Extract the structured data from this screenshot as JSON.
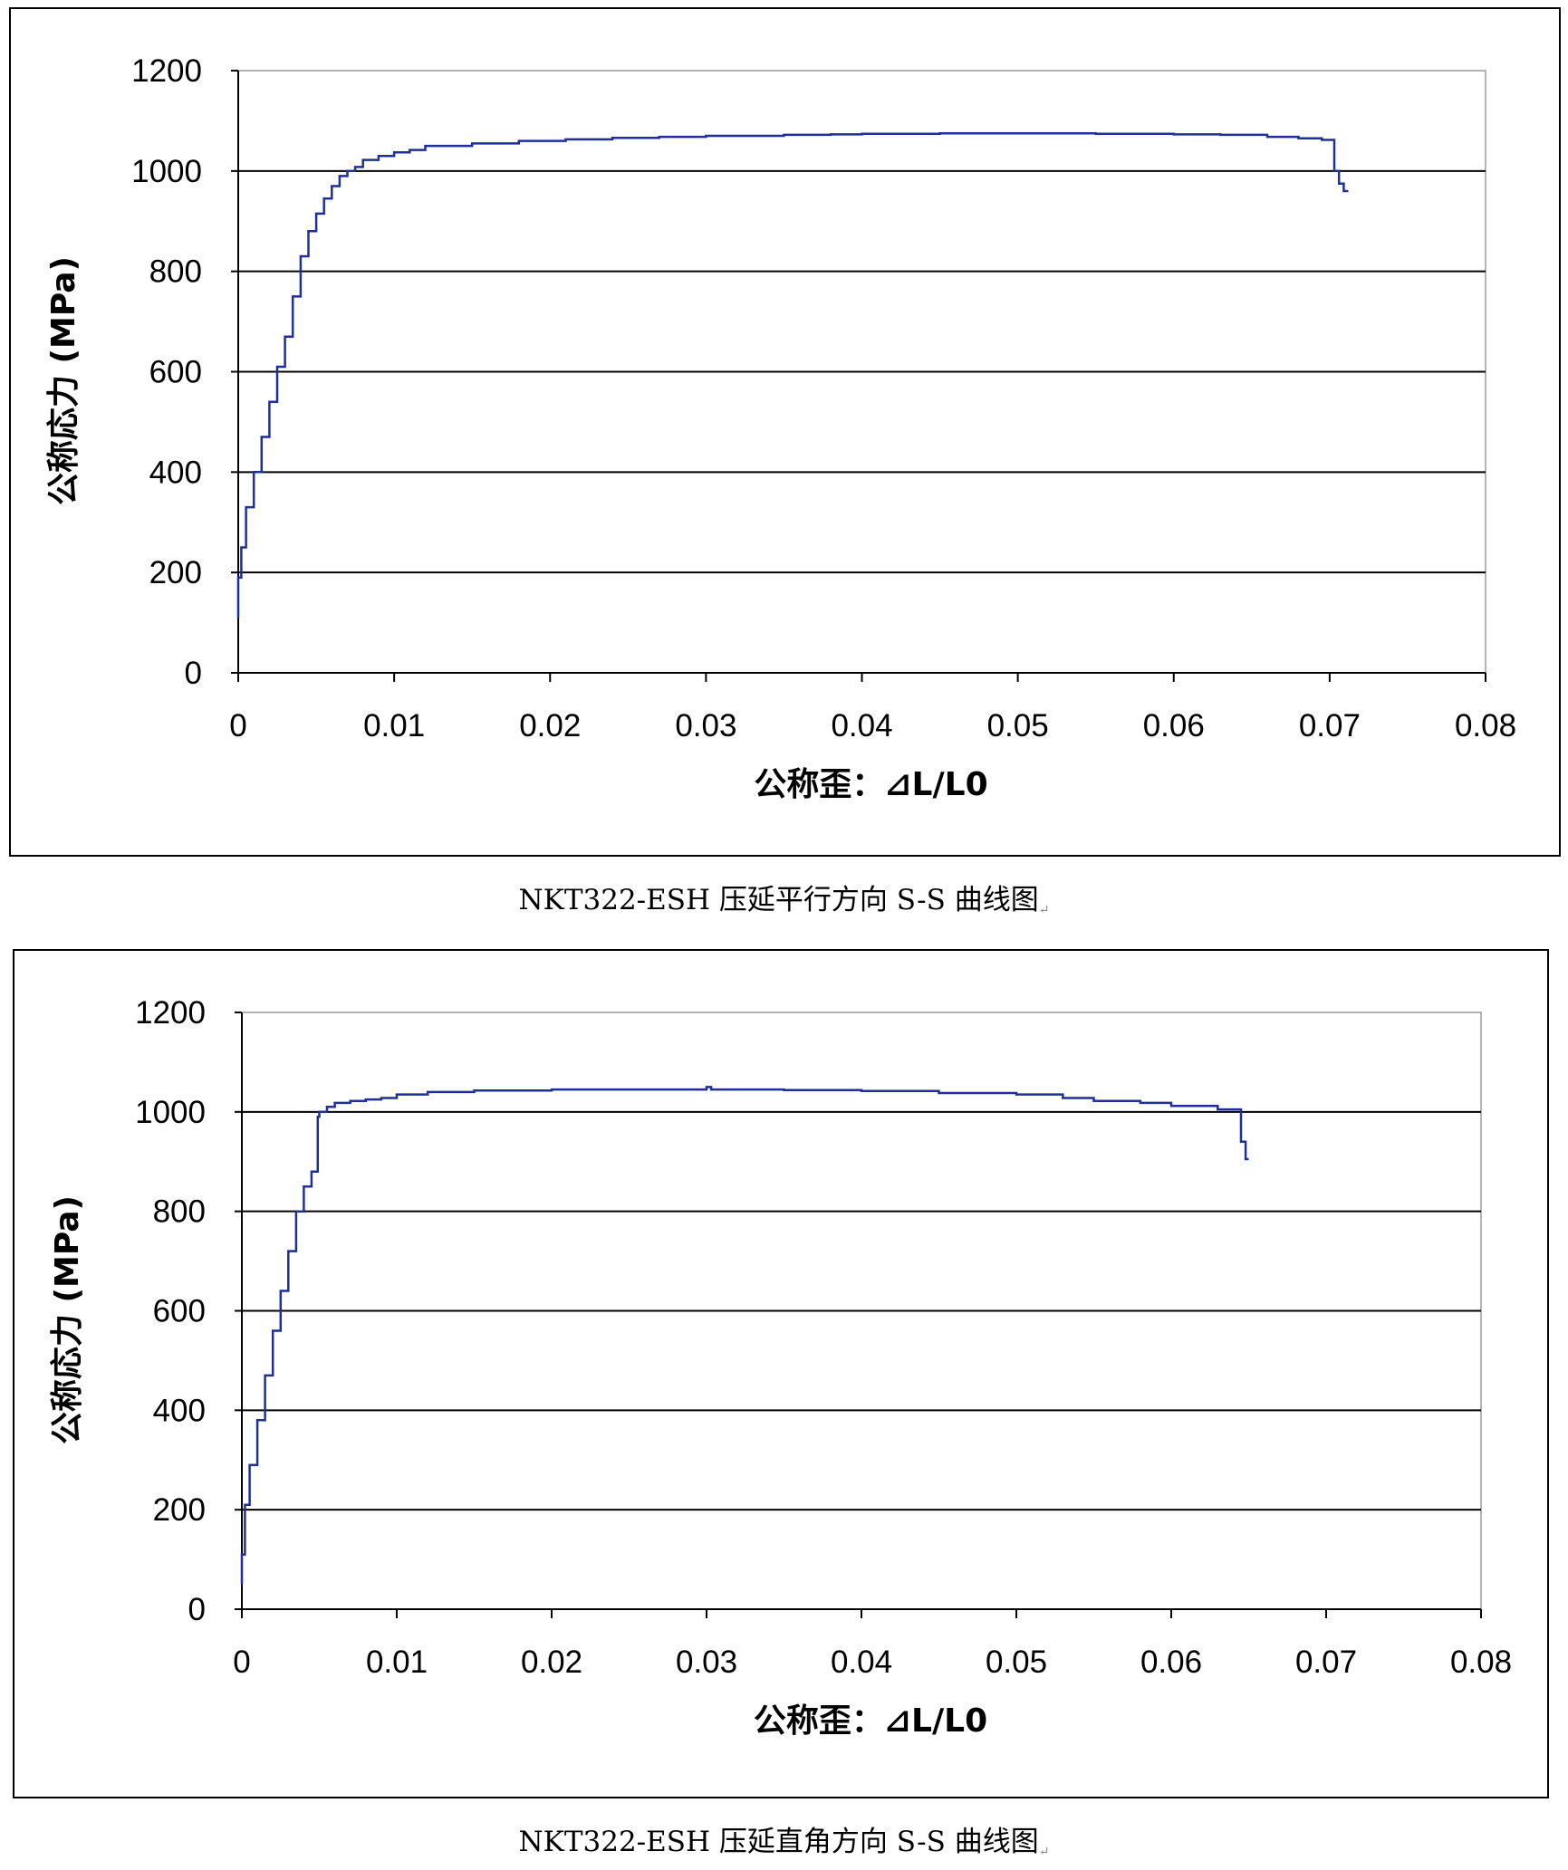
{
  "figures": [
    {
      "caption": "NKT322-ESH 压延平行方向 S-S 曲线图",
      "chart_data": {
        "type": "line",
        "xlabel": "公称歪：⊿L/L0",
        "ylabel": "公称応力 (MPa)",
        "xlim": [
          0,
          0.08
        ],
        "ylim": [
          0,
          1200
        ],
        "xticks": [
          "0",
          "0.01",
          "0.02",
          "0.03",
          "0.04",
          "0.05",
          "0.06",
          "0.07",
          "0.08"
        ],
        "yticks": [
          "0",
          "200",
          "400",
          "600",
          "800",
          "1000",
          "1200"
        ],
        "grid": "horizontal",
        "line_color": "#1f2f9a",
        "series": [
          {
            "x": [
              0,
              0.0002,
              0.0005,
              0.001,
              0.0015,
              0.002,
              0.0025,
              0.003,
              0.0035,
              0.004,
              0.0045,
              0.005,
              0.0055,
              0.006,
              0.0065,
              0.007,
              0.0075,
              0.008,
              0.009,
              0.01,
              0.011,
              0.012,
              0.015,
              0.018,
              0.021,
              0.024,
              0.027,
              0.03,
              0.035,
              0.038,
              0.04,
              0.045,
              0.05,
              0.055,
              0.06,
              0.063,
              0.066,
              0.068,
              0.0695,
              0.0703,
              0.0706,
              0.0709,
              0.0712
            ],
            "y": [
              110,
              190,
              250,
              330,
              400,
              470,
              540,
              610,
              670,
              750,
              830,
              880,
              915,
              945,
              970,
              990,
              1000,
              1008,
              1022,
              1030,
              1037,
              1042,
              1050,
              1055,
              1060,
              1063,
              1066,
              1068,
              1070,
              1072,
              1073,
              1074,
              1075,
              1075,
              1074,
              1073,
              1072,
              1068,
              1065,
              1062,
              1000,
              975,
              960
            ]
          }
        ]
      }
    },
    {
      "caption": "NKT322-ESH 压延直角方向 S-S 曲线图",
      "chart_data": {
        "type": "line",
        "xlabel": "公称歪：⊿L/L0",
        "ylabel": "公称応力 (MPa)",
        "xlim": [
          0,
          0.08
        ],
        "ylim": [
          0,
          1200
        ],
        "xticks": [
          "0",
          "0.01",
          "0.02",
          "0.03",
          "0.04",
          "0.05",
          "0.06",
          "0.07",
          "0.08"
        ],
        "yticks": [
          "0",
          "200",
          "400",
          "600",
          "800",
          "1000",
          "1200"
        ],
        "grid": "horizontal",
        "line_color": "#1f2f9a",
        "series": [
          {
            "x": [
              0,
              0.0002,
              0.0005,
              0.001,
              0.0015,
              0.002,
              0.0025,
              0.003,
              0.0035,
              0.004,
              0.0045,
              0.0049,
              0.005,
              0.0055,
              0.006,
              0.007,
              0.008,
              0.009,
              0.01,
              0.012,
              0.015,
              0.02,
              0.025,
              0.03,
              0.0303,
              0.031,
              0.035,
              0.04,
              0.045,
              0.05,
              0.053,
              0.055,
              0.058,
              0.06,
              0.063,
              0.0645,
              0.0648,
              0.065
            ],
            "y": [
              50,
              110,
              210,
              290,
              380,
              470,
              560,
              640,
              720,
              800,
              850,
              880,
              990,
              1000,
              1010,
              1018,
              1022,
              1025,
              1028,
              1035,
              1040,
              1043,
              1045,
              1045,
              1050,
              1045,
              1045,
              1044,
              1042,
              1038,
              1035,
              1028,
              1022,
              1018,
              1012,
              1005,
              940,
              905
            ]
          }
        ]
      }
    }
  ]
}
